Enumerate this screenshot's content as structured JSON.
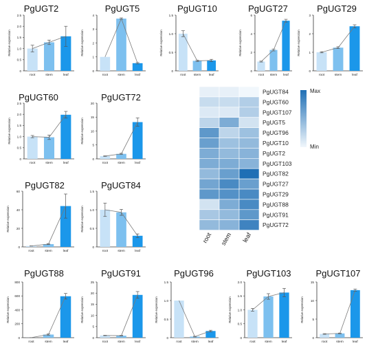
{
  "figure": {
    "colors": {
      "root": "#c7e2f7",
      "stem": "#7dc0ef",
      "leaf": "#1b97ea",
      "line": "#7a7a7a",
      "axis": "#333333",
      "heat_min": "#f1f7fc",
      "heat_max": "#1f6fb5"
    }
  },
  "chart_data": [
    {
      "type": "bar",
      "title": "PgUGT2",
      "ylabel": "Relative expression",
      "categories": [
        "root",
        "stem",
        "leaf"
      ],
      "values": [
        1.0,
        1.28,
        1.55
      ],
      "errors": [
        0.15,
        0.1,
        0.45
      ],
      "ylim": [
        0,
        2.5
      ],
      "yticks": [
        "0",
        "0.5",
        "1.0",
        "1.5",
        "2.0",
        "2.5"
      ]
    },
    {
      "type": "bar",
      "title": "PgUGT5",
      "ylabel": "Relative expression",
      "categories": [
        "root",
        "stem",
        "leaf"
      ],
      "values": [
        1.0,
        3.75,
        0.55
      ],
      "errors": [
        0,
        0.05,
        0.05
      ],
      "ylim": [
        0,
        4
      ],
      "yticks": [
        "0",
        "1",
        "2",
        "3",
        "4"
      ]
    },
    {
      "type": "bar",
      "title": "PgUGT10",
      "ylabel": "Relative expression",
      "categories": [
        "root",
        "stem",
        "leaf"
      ],
      "values": [
        1.0,
        0.27,
        0.28
      ],
      "errors": [
        0.08,
        0.02,
        0.03
      ],
      "ylim": [
        0,
        1.5
      ],
      "yticks": [
        "0",
        "0.5",
        "1.0",
        "1.5"
      ]
    },
    {
      "type": "bar",
      "title": "PgUGT27",
      "ylabel": "Relative expression",
      "categories": [
        "root",
        "stem",
        "leaf"
      ],
      "values": [
        1.0,
        2.25,
        5.4
      ],
      "errors": [
        0.05,
        0.1,
        0.15
      ],
      "ylim": [
        0,
        6
      ],
      "yticks": [
        "0",
        "2",
        "4",
        "6"
      ]
    },
    {
      "type": "bar",
      "title": "PgUGT29",
      "ylabel": "Relative expression",
      "categories": [
        "root",
        "stem",
        "leaf"
      ],
      "values": [
        1.0,
        1.25,
        2.4
      ],
      "errors": [
        0.03,
        0.05,
        0.08
      ],
      "ylim": [
        0,
        3
      ],
      "yticks": [
        "0",
        "1",
        "2",
        "3"
      ]
    },
    {
      "type": "bar",
      "title": "PgUGT60",
      "ylabel": "Relative expression",
      "categories": [
        "root",
        "stem",
        "leaf"
      ],
      "values": [
        1.0,
        0.97,
        1.98
      ],
      "errors": [
        0.05,
        0.1,
        0.15
      ],
      "ylim": [
        0,
        2.5
      ],
      "yticks": [
        "0",
        "0.5",
        "1.0",
        "1.5",
        "2.0",
        "2.5"
      ]
    },
    {
      "type": "bar",
      "title": "PgUGT72",
      "ylabel": "Relative expression",
      "categories": [
        "root",
        "stem",
        "leaf"
      ],
      "values": [
        1.0,
        1.8,
        13.2
      ],
      "errors": [
        0.1,
        0.2,
        1.5
      ],
      "ylim": [
        0,
        20
      ],
      "yticks": [
        "0",
        "5",
        "10",
        "15",
        "20"
      ]
    },
    {
      "type": "bar",
      "title": "PgUGT82",
      "ylabel": "Relative expression",
      "categories": [
        "root",
        "stem",
        "leaf"
      ],
      "values": [
        1.0,
        3.0,
        44
      ],
      "errors": [
        0.1,
        0.5,
        13
      ],
      "ylim": [
        0,
        60
      ],
      "yticks": [
        "0",
        "20",
        "40",
        "60"
      ]
    },
    {
      "type": "bar",
      "title": "PgUGT84",
      "ylabel": "Relative expression",
      "categories": [
        "root",
        "stem",
        "leaf"
      ],
      "values": [
        1.0,
        0.93,
        0.3
      ],
      "errors": [
        0.18,
        0.08,
        0.05
      ],
      "ylim": [
        0,
        1.5
      ],
      "yticks": [
        "0",
        "0.5",
        "1.0",
        "1.5"
      ]
    },
    {
      "type": "bar",
      "title": "PgUGT88",
      "ylabel": "Relative expression",
      "categories": [
        "root",
        "stem",
        "leaf"
      ],
      "values": [
        1.0,
        45,
        595
      ],
      "errors": [
        0.1,
        10,
        40
      ],
      "ylim": [
        0,
        800
      ],
      "yticks": [
        "0",
        "200",
        "400",
        "600",
        "800"
      ]
    },
    {
      "type": "bar",
      "title": "PgUGT91",
      "ylabel": "Relative expression",
      "categories": [
        "root",
        "stem",
        "leaf"
      ],
      "values": [
        1.0,
        0.9,
        19.2
      ],
      "errors": [
        0.1,
        0.15,
        1.5
      ],
      "ylim": [
        0,
        25
      ],
      "yticks": [
        "0",
        "5",
        "10",
        "15",
        "20",
        "25"
      ]
    },
    {
      "type": "bar",
      "title": "PgUGT96",
      "ylabel": "Relative expression",
      "categories": [
        "root",
        "stem",
        "leaf"
      ],
      "values": [
        1.0,
        0.03,
        0.18
      ],
      "errors": [
        0,
        0.01,
        0.02
      ],
      "ylim": [
        0,
        1.5
      ],
      "yticks": [
        "0",
        "0.5",
        "1.0",
        "1.5"
      ]
    },
    {
      "type": "bar",
      "title": "PgUGT103",
      "ylabel": "Relative expression",
      "categories": [
        "root",
        "stem",
        "leaf"
      ],
      "values": [
        1.0,
        1.48,
        1.62
      ],
      "errors": [
        0.05,
        0.1,
        0.15
      ],
      "ylim": [
        0,
        2.0
      ],
      "yticks": [
        "0",
        "0.5",
        "1.0",
        "1.5",
        "2.0"
      ]
    },
    {
      "type": "bar",
      "title": "PgUGT107",
      "ylabel": "Relative expression",
      "categories": [
        "root",
        "stem",
        "leaf"
      ],
      "values": [
        1.0,
        1.15,
        12.8
      ],
      "errors": [
        0.1,
        0.1,
        0.3
      ],
      "ylim": [
        0,
        15
      ],
      "yticks": [
        "0",
        "5",
        "10",
        "15"
      ]
    },
    {
      "type": "heatmap",
      "title": "",
      "columns": [
        "root",
        "stem",
        "leaf"
      ],
      "rows": [
        "PgUGT84",
        "PgUGT60",
        "PgUGT107",
        "PgUGT5",
        "PgUGT96",
        "PgUGT10",
        "PgUGT2",
        "PgUGT103",
        "PgUGT82",
        "PgUGT27",
        "PgUGT29",
        "PgUGT88",
        "PgUGT91",
        "PgUGT72"
      ],
      "values": [
        [
          0.05,
          0.05,
          0.0
        ],
        [
          0.2,
          0.2,
          0.3
        ],
        [
          0.1,
          0.1,
          0.3
        ],
        [
          0.25,
          0.55,
          0.15
        ],
        [
          0.7,
          0.25,
          0.4
        ],
        [
          0.65,
          0.4,
          0.45
        ],
        [
          0.55,
          0.45,
          0.5
        ],
        [
          0.55,
          0.55,
          0.5
        ],
        [
          0.45,
          0.65,
          1.0
        ],
        [
          0.6,
          0.8,
          0.65
        ],
        [
          0.7,
          0.75,
          0.8
        ],
        [
          0.15,
          0.55,
          0.8
        ],
        [
          0.35,
          0.45,
          0.7
        ],
        [
          0.45,
          0.5,
          0.85
        ]
      ],
      "legend": {
        "max_label": "Max",
        "min_label": "Min"
      }
    }
  ]
}
